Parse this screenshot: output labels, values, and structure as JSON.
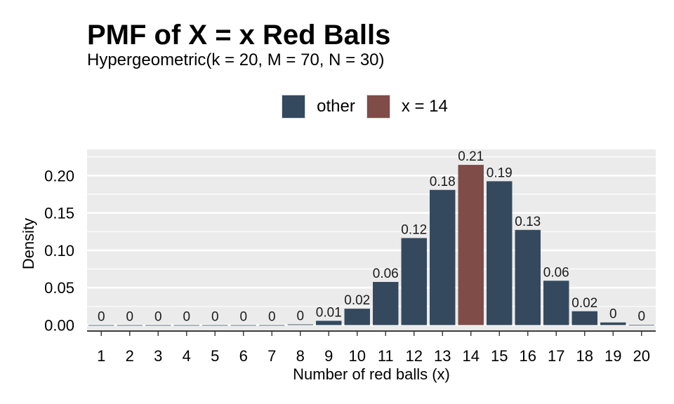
{
  "title": "PMF of X = x Red Balls",
  "subtitle": "Hypergeometric(k = 20, M = 70, N = 30)",
  "legend": [
    {
      "label": "other",
      "color": "#34495e"
    },
    {
      "label": "x = 14",
      "color": "#7f4c48"
    }
  ],
  "chart_data": {
    "type": "bar",
    "xlabel": "Number of red balls (x)",
    "ylabel": "Density",
    "ylim": [
      -0.008,
      0.235
    ],
    "yticks": [
      "0.00",
      "0.05",
      "0.10",
      "0.15",
      "0.20"
    ],
    "grid": true,
    "legend_position": "top",
    "highlight_category": "14",
    "categories": [
      "1",
      "2",
      "3",
      "4",
      "5",
      "6",
      "7",
      "8",
      "9",
      "10",
      "11",
      "12",
      "13",
      "14",
      "15",
      "16",
      "17",
      "18",
      "19",
      "20"
    ],
    "values": [
      0,
      0,
      0,
      0,
      0,
      0,
      0,
      0.0009,
      0.0057,
      0.0219,
      0.0577,
      0.1164,
      0.1808,
      0.2143,
      0.1924,
      0.1273,
      0.0593,
      0.0185,
      0.0035,
      0.0003
    ],
    "labels": [
      "0",
      "0",
      "0",
      "0",
      "0",
      "0",
      "0",
      "0",
      "0.01",
      "0.02",
      "0.06",
      "0.12",
      "0.18",
      "0.21",
      "0.19",
      "0.13",
      "0.06",
      "0.02",
      "0",
      "0"
    ],
    "colors": {
      "other": "#34495e",
      "highlight": "#7f4c48"
    }
  }
}
